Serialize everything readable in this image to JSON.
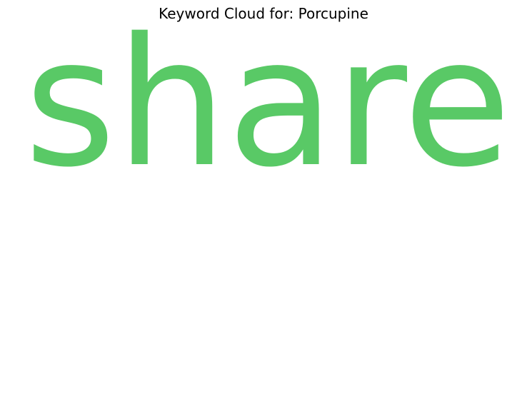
{
  "chart_data": {
    "type": "wordcloud",
    "title": "Keyword Cloud for: Porcupine",
    "words": [
      {
        "text": "share",
        "color": "#59c966"
      }
    ],
    "grid": false,
    "legend": "none"
  }
}
